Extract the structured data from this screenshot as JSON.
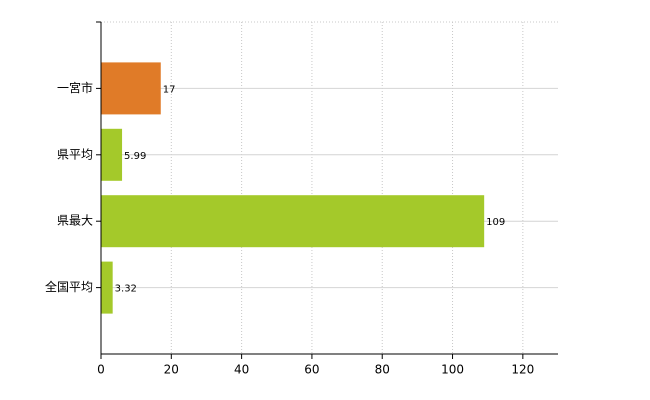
{
  "chart_data": {
    "type": "hbar",
    "categories": [
      "一宮市",
      "県平均",
      "県最大",
      "全国平均"
    ],
    "values": [
      17,
      5.99,
      109,
      3.32
    ],
    "colors": [
      "#e07b28",
      "#a4c92a",
      "#a4c92a",
      "#a4c92a"
    ],
    "xlim": [
      0,
      130
    ],
    "xticks": [
      0,
      20,
      40,
      60,
      80,
      100,
      120
    ],
    "grid": true
  }
}
